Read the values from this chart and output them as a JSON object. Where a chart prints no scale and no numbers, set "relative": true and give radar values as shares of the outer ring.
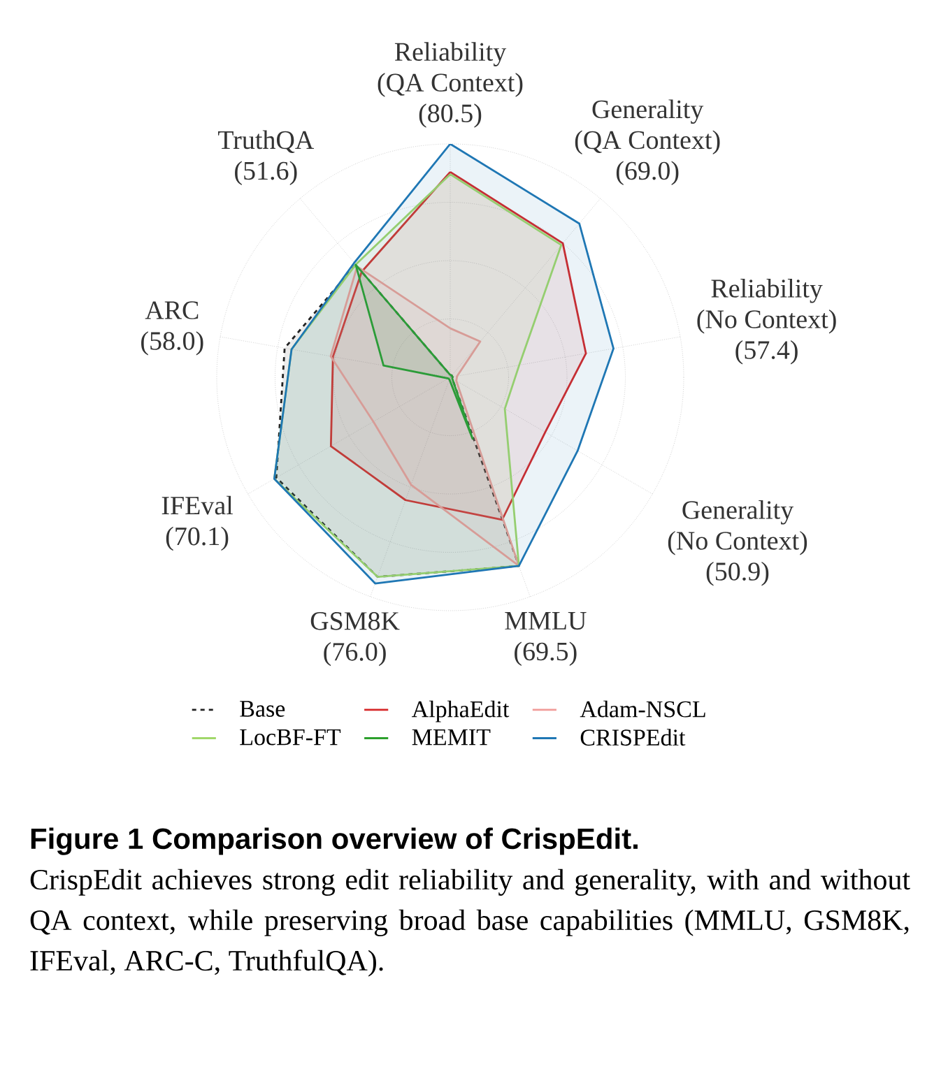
{
  "chart_data": {
    "type": "radar",
    "relative": true,
    "grid": true,
    "legend": "bottom",
    "line_style": "solid",
    "title": "Figure 1 Comparison overview of CrispEdit.",
    "annotations": [
      "CrispEdit achieves strong edit reliability and generality, with and without QA context, while preserving broad base capabilities (MMLU, GSM8K, IFEval, ARC-C, TruthfulQA)."
    ],
    "categories": [
      "Reliability (QA Context) (80.5)",
      "Generality (QA Context) (69.0)",
      "Reliability (No Context) (57.4)",
      "Generality (No Context) (50.9)",
      "MMLU (69.5)",
      "GSM8K (76.0)",
      "IFEval (70.1)",
      "ARC (58.0)",
      "TruthQA (51.6)"
    ],
    "series": [
      {
        "name": "Base",
        "color": "#222222",
        "line_style": "dashed",
        "values": [
          0.01,
          0.01,
          0.01,
          0.01,
          0.86,
          0.91,
          0.86,
          0.72,
          0.63
        ]
      },
      {
        "name": "AlphaEdit",
        "color": "#d62728",
        "values": [
          0.88,
          0.75,
          0.59,
          0.47,
          0.65,
          0.56,
          0.59,
          0.51,
          0.59
        ]
      },
      {
        "name": "Adam-NSCL",
        "color": "#f19c99",
        "values": [
          0.21,
          0.2,
          0.03,
          0.03,
          0.86,
          0.49,
          0.38,
          0.52,
          0.62
        ]
      },
      {
        "name": "LocBF-FT",
        "color": "#a1d76a",
        "values": [
          0.87,
          0.74,
          0.3,
          0.27,
          0.86,
          0.91,
          0.87,
          0.69,
          0.63
        ]
      },
      {
        "name": "MEMIT",
        "color": "#2ca02c",
        "values": [
          0.01,
          0.01,
          0.01,
          0.01,
          0.28,
          0.01,
          0.01,
          0.29,
          0.63
        ]
      },
      {
        "name": "CRISPEdit",
        "color": "#1f77b4",
        "values": [
          1.0,
          0.86,
          0.71,
          0.63,
          0.86,
          0.94,
          0.87,
          0.69,
          0.64
        ]
      }
    ]
  }
}
